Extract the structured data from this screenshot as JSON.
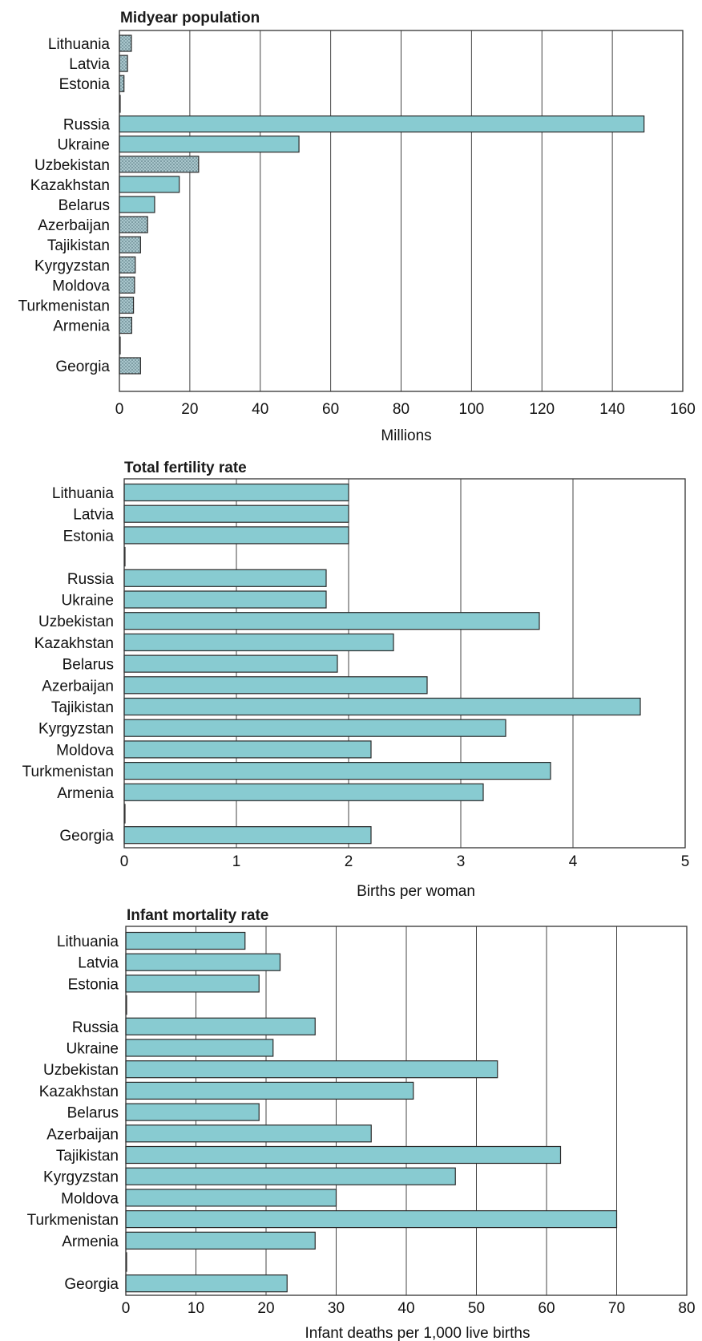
{
  "chart_data": [
    {
      "type": "bar",
      "title": "Midyear population",
      "xlabel": "Millions",
      "ylabel": "",
      "xlim": [
        0,
        160
      ],
      "ticks": [
        "0",
        "20",
        "40",
        "60",
        "80",
        "100",
        "120",
        "140",
        "160"
      ],
      "categories": [
        "Lithuania",
        "Latvia",
        "Estonia",
        "Russia",
        "Ukraine",
        "Uzbekistan",
        "Kazakhstan",
        "Belarus",
        "Azerbaijan",
        "Tajikistan",
        "Kyrgyzstan",
        "Moldova",
        "Turkmenistan",
        "Armenia",
        "Georgia"
      ],
      "values": [
        3.4,
        2.3,
        1.3,
        149,
        51,
        22.5,
        17,
        10,
        8,
        6,
        4.5,
        4.3,
        4,
        3.5,
        6
      ],
      "hatched": [
        true,
        true,
        true,
        false,
        false,
        true,
        false,
        false,
        true,
        true,
        true,
        true,
        true,
        true,
        true
      ],
      "grid": true,
      "colors": {
        "bar": "#88cbd1",
        "hatched": "#9ebcc4"
      }
    },
    {
      "type": "bar",
      "title": "Total fertility rate",
      "xlabel": "Births per woman",
      "ylabel": "",
      "xlim": [
        0,
        5
      ],
      "ticks": [
        "0",
        "1",
        "2",
        "3",
        "4",
        "5"
      ],
      "categories": [
        "Lithuania",
        "Latvia",
        "Estonia",
        "Russia",
        "Ukraine",
        "Uzbekistan",
        "Kazakhstan",
        "Belarus",
        "Azerbaijan",
        "Tajikistan",
        "Kyrgyzstan",
        "Moldova",
        "Turkmenistan",
        "Armenia",
        "Georgia"
      ],
      "values": [
        2.0,
        2.0,
        2.0,
        1.8,
        1.8,
        3.7,
        2.4,
        1.9,
        2.7,
        4.6,
        3.4,
        2.2,
        3.8,
        3.2,
        2.2
      ],
      "grid": true,
      "colors": {
        "bar": "#88cbd1"
      }
    },
    {
      "type": "bar",
      "title": "Infant mortality rate",
      "xlabel": "Infant deaths per 1,000 live births",
      "ylabel": "",
      "xlim": [
        0,
        80
      ],
      "ticks": [
        "0",
        "10",
        "20",
        "30",
        "40",
        "50",
        "60",
        "70",
        "80"
      ],
      "categories": [
        "Lithuania",
        "Latvia",
        "Estonia",
        "Russia",
        "Ukraine",
        "Uzbekistan",
        "Kazakhstan",
        "Belarus",
        "Azerbaijan",
        "Tajikistan",
        "Kyrgyzstan",
        "Moldova",
        "Turkmenistan",
        "Armenia",
        "Georgia"
      ],
      "values": [
        17,
        22,
        19,
        27,
        21,
        53,
        41,
        19,
        35,
        62,
        47,
        30,
        70,
        27,
        23
      ],
      "grid": true,
      "colors": {
        "bar": "#88cbd1"
      }
    }
  ]
}
